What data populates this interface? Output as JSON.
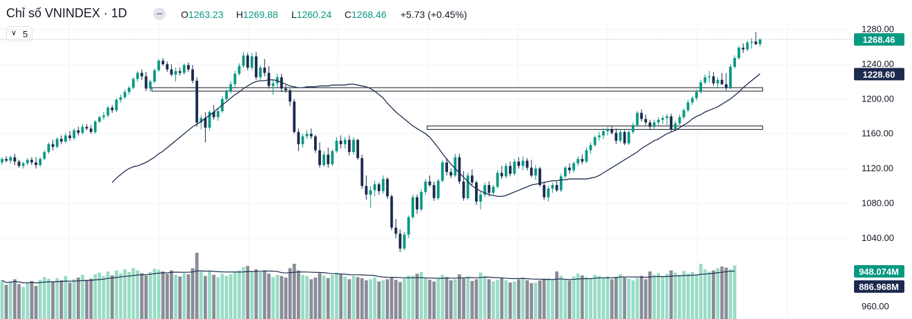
{
  "header": {
    "title": "Chỉ số VNINDEX · 1D",
    "open_label": "O",
    "open_value": "1263.23",
    "high_label": "H",
    "high_value": "1269.88",
    "low_label": "L",
    "low_value": "1260.24",
    "close_label": "C",
    "close_value": "1268.46",
    "change": "+5.73 (+0.45%)",
    "interval_value": "5",
    "interval_chevron": "chevron-down-icon",
    "collapse_icon": "minus-icon"
  },
  "price_axis": {
    "ticks": [
      "1280.00",
      "1240.00",
      "1200.00",
      "1160.00",
      "1120.00",
      "1080.00",
      "1040.00"
    ],
    "last_price_label": "1268.46",
    "ma_label": "1228.60"
  },
  "volume_axis": {
    "volume_label": "948.074M",
    "volume_ma_label": "886.968M",
    "tick": "960.00"
  },
  "colors": {
    "up": "#089981",
    "down": "#1c2a4e",
    "ma_line": "#1c2a4e",
    "vol_up": "#99dcc6",
    "vol_down": "#8a8d99",
    "last_price_bg": "#089981",
    "ma_label_bg": "#1c2a4e",
    "grid": "#f0f3fa",
    "dotted": "#9fa2ab"
  },
  "chart_data": {
    "type": "candlestick",
    "timeframe": "1D",
    "y_range": [
      1020,
      1290
    ],
    "candles": [
      [
        1127,
        1133,
        1124,
        1131
      ],
      [
        1131,
        1134,
        1127,
        1129
      ],
      [
        1129,
        1135,
        1126,
        1133
      ],
      [
        1133,
        1137,
        1124,
        1128
      ],
      [
        1128,
        1130,
        1121,
        1123
      ],
      [
        1123,
        1128,
        1120,
        1126
      ],
      [
        1126,
        1132,
        1124,
        1130
      ],
      [
        1130,
        1133,
        1124,
        1127
      ],
      [
        1127,
        1133,
        1120,
        1124
      ],
      [
        1124,
        1133,
        1122,
        1131
      ],
      [
        1131,
        1141,
        1130,
        1139
      ],
      [
        1139,
        1150,
        1137,
        1148
      ],
      [
        1148,
        1153,
        1141,
        1145
      ],
      [
        1145,
        1156,
        1143,
        1154
      ],
      [
        1154,
        1158,
        1148,
        1151
      ],
      [
        1151,
        1161,
        1149,
        1158
      ],
      [
        1158,
        1163,
        1152,
        1155
      ],
      [
        1155,
        1166,
        1153,
        1164
      ],
      [
        1164,
        1168,
        1158,
        1161
      ],
      [
        1161,
        1171,
        1159,
        1168
      ],
      [
        1168,
        1171,
        1164,
        1166
      ],
      [
        1166,
        1170,
        1160,
        1162
      ],
      [
        1162,
        1176,
        1160,
        1174
      ],
      [
        1174,
        1181,
        1172,
        1179
      ],
      [
        1179,
        1185,
        1176,
        1181
      ],
      [
        1181,
        1192,
        1179,
        1190
      ],
      [
        1190,
        1193,
        1184,
        1187
      ],
      [
        1187,
        1201,
        1185,
        1199
      ],
      [
        1199,
        1205,
        1196,
        1202
      ],
      [
        1202,
        1211,
        1200,
        1208
      ],
      [
        1208,
        1215,
        1205,
        1213
      ],
      [
        1213,
        1225,
        1211,
        1223
      ],
      [
        1223,
        1232,
        1220,
        1230
      ],
      [
        1230,
        1234,
        1222,
        1226
      ],
      [
        1226,
        1231,
        1209,
        1212
      ],
      [
        1212,
        1222,
        1208,
        1220
      ],
      [
        1220,
        1235,
        1218,
        1233
      ],
      [
        1233,
        1246,
        1231,
        1244
      ],
      [
        1244,
        1247,
        1238,
        1240
      ],
      [
        1240,
        1243,
        1231,
        1234
      ],
      [
        1234,
        1240,
        1226,
        1228
      ],
      [
        1228,
        1236,
        1220,
        1232
      ],
      [
        1232,
        1236,
        1227,
        1230
      ],
      [
        1230,
        1241,
        1228,
        1239
      ],
      [
        1239,
        1242,
        1231,
        1234
      ],
      [
        1234,
        1239,
        1218,
        1221
      ],
      [
        1221,
        1225,
        1168,
        1173
      ],
      [
        1173,
        1181,
        1165,
        1178
      ],
      [
        1178,
        1185,
        1150,
        1167
      ],
      [
        1167,
        1187,
        1164,
        1185
      ],
      [
        1185,
        1193,
        1176,
        1179
      ],
      [
        1179,
        1189,
        1175,
        1186
      ],
      [
        1186,
        1203,
        1184,
        1200
      ],
      [
        1200,
        1211,
        1198,
        1209
      ],
      [
        1209,
        1220,
        1206,
        1217
      ],
      [
        1217,
        1232,
        1213,
        1229
      ],
      [
        1229,
        1241,
        1227,
        1238
      ],
      [
        1238,
        1254,
        1236,
        1250
      ],
      [
        1250,
        1253,
        1233,
        1236
      ],
      [
        1236,
        1253,
        1233,
        1249
      ],
      [
        1249,
        1254,
        1222,
        1225
      ],
      [
        1225,
        1239,
        1222,
        1236
      ],
      [
        1236,
        1246,
        1226,
        1230
      ],
      [
        1230,
        1238,
        1212,
        1215
      ],
      [
        1215,
        1222,
        1205,
        1218
      ],
      [
        1218,
        1229,
        1213,
        1225
      ],
      [
        1225,
        1229,
        1208,
        1212
      ],
      [
        1212,
        1216,
        1207,
        1210
      ],
      [
        1210,
        1212,
        1192,
        1197
      ],
      [
        1197,
        1200,
        1160,
        1162
      ],
      [
        1162,
        1166,
        1140,
        1148
      ],
      [
        1148,
        1160,
        1144,
        1157
      ],
      [
        1157,
        1164,
        1154,
        1160
      ],
      [
        1160,
        1166,
        1154,
        1157
      ],
      [
        1157,
        1159,
        1138,
        1141
      ],
      [
        1141,
        1150,
        1121,
        1124
      ],
      [
        1124,
        1140,
        1122,
        1136
      ],
      [
        1136,
        1144,
        1121,
        1125
      ],
      [
        1125,
        1142,
        1123,
        1140
      ],
      [
        1140,
        1156,
        1138,
        1152
      ],
      [
        1152,
        1158,
        1143,
        1148
      ],
      [
        1148,
        1156,
        1143,
        1153
      ],
      [
        1153,
        1158,
        1135,
        1139
      ],
      [
        1139,
        1156,
        1136,
        1153
      ],
      [
        1153,
        1154,
        1130,
        1132
      ],
      [
        1132,
        1136,
        1097,
        1100
      ],
      [
        1100,
        1112,
        1084,
        1090
      ],
      [
        1090,
        1100,
        1075,
        1095
      ],
      [
        1095,
        1106,
        1088,
        1102
      ],
      [
        1102,
        1104,
        1090,
        1094
      ],
      [
        1094,
        1112,
        1091,
        1108
      ],
      [
        1108,
        1110,
        1085,
        1088
      ],
      [
        1088,
        1090,
        1049,
        1052
      ],
      [
        1052,
        1062,
        1040,
        1045
      ],
      [
        1045,
        1050,
        1024,
        1028
      ],
      [
        1028,
        1047,
        1026,
        1044
      ],
      [
        1044,
        1066,
        1040,
        1064
      ],
      [
        1064,
        1090,
        1062,
        1087
      ],
      [
        1087,
        1090,
        1068,
        1073
      ],
      [
        1073,
        1096,
        1071,
        1093
      ],
      [
        1093,
        1108,
        1090,
        1105
      ],
      [
        1105,
        1112,
        1099,
        1101
      ],
      [
        1101,
        1105,
        1083,
        1086
      ],
      [
        1086,
        1108,
        1084,
        1106
      ],
      [
        1106,
        1130,
        1104,
        1127
      ],
      [
        1127,
        1132,
        1112,
        1116
      ],
      [
        1116,
        1120,
        1109,
        1112
      ],
      [
        1112,
        1137,
        1110,
        1133
      ],
      [
        1133,
        1137,
        1102,
        1105
      ],
      [
        1105,
        1117,
        1083,
        1086
      ],
      [
        1086,
        1115,
        1084,
        1112
      ],
      [
        1112,
        1119,
        1101,
        1104
      ],
      [
        1104,
        1106,
        1078,
        1082
      ],
      [
        1082,
        1093,
        1073,
        1090
      ],
      [
        1090,
        1104,
        1087,
        1101
      ],
      [
        1101,
        1105,
        1088,
        1092
      ],
      [
        1092,
        1101,
        1090,
        1099
      ],
      [
        1099,
        1118,
        1097,
        1115
      ],
      [
        1115,
        1123,
        1108,
        1111
      ],
      [
        1111,
        1126,
        1109,
        1123
      ],
      [
        1123,
        1128,
        1111,
        1114
      ],
      [
        1114,
        1131,
        1112,
        1128
      ],
      [
        1128,
        1133,
        1120,
        1123
      ],
      [
        1123,
        1134,
        1118,
        1129
      ],
      [
        1129,
        1132,
        1118,
        1121
      ],
      [
        1121,
        1130,
        1110,
        1112
      ],
      [
        1112,
        1124,
        1107,
        1120
      ],
      [
        1120,
        1122,
        1099,
        1101
      ],
      [
        1101,
        1105,
        1084,
        1087
      ],
      [
        1087,
        1100,
        1082,
        1097
      ],
      [
        1097,
        1104,
        1092,
        1101
      ],
      [
        1101,
        1105,
        1093,
        1095
      ],
      [
        1095,
        1114,
        1093,
        1111
      ],
      [
        1111,
        1123,
        1109,
        1121
      ],
      [
        1121,
        1126,
        1114,
        1118
      ],
      [
        1118,
        1128,
        1115,
        1126
      ],
      [
        1126,
        1134,
        1123,
        1131
      ],
      [
        1131,
        1136,
        1125,
        1128
      ],
      [
        1128,
        1144,
        1126,
        1141
      ],
      [
        1141,
        1150,
        1137,
        1147
      ],
      [
        1147,
        1158,
        1145,
        1156
      ],
      [
        1156,
        1162,
        1152,
        1158
      ],
      [
        1158,
        1166,
        1154,
        1163
      ],
      [
        1163,
        1168,
        1158,
        1165
      ],
      [
        1165,
        1169,
        1159,
        1161
      ],
      [
        1161,
        1166,
        1148,
        1152
      ],
      [
        1152,
        1165,
        1150,
        1162
      ],
      [
        1162,
        1164,
        1147,
        1149
      ],
      [
        1149,
        1164,
        1147,
        1162
      ],
      [
        1162,
        1173,
        1160,
        1170
      ],
      [
        1170,
        1186,
        1168,
        1184
      ],
      [
        1184,
        1188,
        1174,
        1177
      ],
      [
        1177,
        1182,
        1170,
        1173
      ],
      [
        1173,
        1176,
        1165,
        1168
      ],
      [
        1168,
        1176,
        1165,
        1173
      ],
      [
        1173,
        1179,
        1169,
        1176
      ],
      [
        1176,
        1181,
        1171,
        1178
      ],
      [
        1178,
        1183,
        1170,
        1180
      ],
      [
        1180,
        1183,
        1162,
        1165
      ],
      [
        1165,
        1175,
        1163,
        1172
      ],
      [
        1172,
        1182,
        1170,
        1179
      ],
      [
        1179,
        1189,
        1177,
        1187
      ],
      [
        1187,
        1199,
        1185,
        1196
      ],
      [
        1196,
        1203,
        1193,
        1201
      ],
      [
        1201,
        1211,
        1198,
        1208
      ],
      [
        1208,
        1222,
        1206,
        1219
      ],
      [
        1219,
        1228,
        1217,
        1225
      ],
      [
        1225,
        1232,
        1219,
        1226
      ],
      [
        1226,
        1231,
        1215,
        1218
      ],
      [
        1218,
        1225,
        1212,
        1222
      ],
      [
        1222,
        1230,
        1216,
        1217
      ],
      [
        1217,
        1230,
        1210,
        1213
      ],
      [
        1213,
        1240,
        1211,
        1237
      ],
      [
        1237,
        1250,
        1235,
        1247
      ],
      [
        1247,
        1261,
        1245,
        1259
      ],
      [
        1259,
        1264,
        1253,
        1257
      ],
      [
        1257,
        1267,
        1255,
        1265
      ],
      [
        1265,
        1270,
        1258,
        1266
      ],
      [
        1266,
        1277,
        1262,
        1263
      ],
      [
        1263.23,
        1269.88,
        1260.24,
        1268.46
      ]
    ],
    "moving_average_line": [
      1104,
      1109,
      1113,
      1117,
      1120,
      1122,
      1123,
      1125,
      1127,
      1130,
      1133,
      1137,
      1140,
      1144,
      1148,
      1152,
      1156,
      1160,
      1164,
      1168,
      1171,
      1174,
      1178,
      1181,
      1185,
      1189,
      1193,
      1197,
      1201,
      1205,
      1208,
      1212,
      1215,
      1218,
      1220,
      1221,
      1221,
      1222,
      1222,
      1221,
      1219,
      1217,
      1215,
      1214,
      1213,
      1213,
      1214,
      1214,
      1214,
      1215,
      1215,
      1215,
      1216,
      1216,
      1216,
      1216,
      1217,
      1217,
      1216,
      1215,
      1214,
      1212,
      1209,
      1205,
      1201,
      1195,
      1190,
      1185,
      1181,
      1177,
      1173,
      1169,
      1166,
      1163,
      1160,
      1156,
      1150,
      1144,
      1137,
      1131,
      1125,
      1120,
      1115,
      1110,
      1105,
      1100,
      1097,
      1094,
      1092,
      1090,
      1089,
      1088,
      1088,
      1089,
      1091,
      1093,
      1095,
      1097,
      1099,
      1101,
      1102,
      1103,
      1104,
      1105,
      1106,
      1106,
      1107,
      1107,
      1108,
      1108,
      1108,
      1108,
      1108,
      1109,
      1110,
      1112,
      1115,
      1118,
      1121,
      1124,
      1127,
      1130,
      1133,
      1136,
      1139,
      1143,
      1146,
      1149,
      1152,
      1154,
      1157,
      1160,
      1162,
      1164,
      1167,
      1170,
      1173,
      1177,
      1180,
      1182,
      1185,
      1187,
      1189,
      1191,
      1194,
      1197,
      1200,
      1204,
      1208,
      1213,
      1217,
      1221,
      1225,
      1229
    ],
    "moving_average_label": "1228.60",
    "horizontal_zones": [
      {
        "from_index": 36,
        "to_index": 209,
        "low": 1209,
        "high": 1213
      },
      {
        "from_index": 101,
        "to_index": 197,
        "low": 1165,
        "high": 1169
      }
    ],
    "volume": {
      "last": "948.074M",
      "ma": "886.968M",
      "scale_tick": "960.00",
      "bars": [
        0.7,
        0.62,
        0.68,
        0.72,
        0.63,
        0.58,
        0.66,
        0.69,
        0.6,
        0.71,
        0.76,
        0.73,
        0.68,
        0.74,
        0.7,
        0.78,
        0.66,
        0.72,
        0.75,
        0.8,
        0.71,
        0.73,
        0.81,
        0.84,
        0.78,
        0.86,
        0.79,
        0.88,
        0.83,
        0.9,
        0.85,
        0.92,
        0.88,
        0.83,
        0.79,
        0.85,
        0.91,
        0.89,
        0.86,
        0.82,
        0.88,
        0.8,
        0.77,
        0.83,
        0.81,
        0.92,
        1.2,
        0.86,
        0.78,
        0.88,
        0.8,
        0.76,
        0.82,
        0.78,
        0.81,
        0.85,
        0.88,
        0.94,
        0.96,
        0.87,
        0.9,
        0.85,
        0.88,
        0.82,
        0.76,
        0.8,
        0.78,
        0.75,
        0.92,
        1.0,
        0.88,
        0.8,
        0.78,
        0.72,
        0.75,
        0.83,
        0.79,
        0.74,
        0.8,
        0.84,
        0.81,
        0.77,
        0.72,
        0.78,
        0.76,
        0.74,
        0.7,
        0.72,
        0.75,
        0.68,
        0.7,
        0.72,
        0.76,
        0.71,
        0.67,
        0.73,
        0.79,
        0.78,
        0.82,
        0.85,
        0.74,
        0.71,
        0.68,
        0.73,
        0.8,
        0.76,
        0.7,
        0.72,
        0.81,
        0.74,
        0.77,
        0.69,
        0.72,
        0.84,
        0.78,
        0.72,
        0.68,
        0.71,
        0.74,
        0.7,
        0.66,
        0.68,
        0.72,
        0.75,
        0.7,
        0.65,
        0.66,
        0.7,
        0.73,
        0.74,
        0.71,
        0.86,
        0.78,
        0.72,
        0.7,
        0.77,
        0.82,
        0.79,
        0.76,
        0.73,
        0.8,
        0.78,
        0.74,
        0.77,
        0.72,
        0.76,
        0.81,
        0.75,
        0.73,
        0.7,
        0.74,
        0.78,
        0.72,
        0.86,
        0.8,
        0.83,
        0.78,
        0.82,
        0.88,
        0.84,
        0.8,
        0.87,
        0.82,
        0.85,
        0.8,
        1.0,
        0.9,
        0.86,
        0.88,
        0.92,
        0.95,
        0.93,
        0.9,
        0.97
      ]
    }
  }
}
